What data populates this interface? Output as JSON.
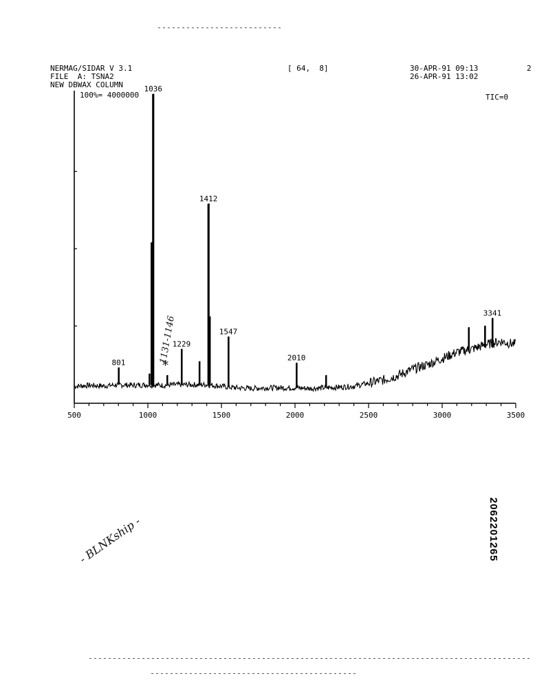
{
  "header": {
    "program": "NERMAG/SIDAR V 3.1",
    "file": "FILE  A: TSNA2",
    "column": "NEW DBWAX COLUMN",
    "scan_range": "[ 64,  8]",
    "date_acquired": "30-APR-91 09:13",
    "date_processed": "26-APR-91 13:02",
    "page_number": "2",
    "scale_label": "100%= 4000000",
    "tic": "TIC=0"
  },
  "annotations": {
    "handwritten_range": "1131-1146",
    "asterisk": "*",
    "handwritten_note": "- BLNKship -",
    "document_id": "2062201265"
  },
  "chart_data": {
    "type": "line",
    "title": "",
    "xlabel": "",
    "ylabel": "",
    "xlim": [
      500,
      3500
    ],
    "ylim": [
      0,
      100
    ],
    "x_ticks": [
      500,
      1000,
      1500,
      2000,
      2500,
      3000,
      3500
    ],
    "y_ticks": [
      25,
      50,
      75
    ],
    "baseline": [
      [
        500,
        5.5
      ],
      [
        600,
        5.8
      ],
      [
        700,
        5.6
      ],
      [
        800,
        6.0
      ],
      [
        900,
        5.8
      ],
      [
        1000,
        6.0
      ],
      [
        1100,
        5.8
      ],
      [
        1200,
        6.0
      ],
      [
        1300,
        6.0
      ],
      [
        1400,
        6.0
      ],
      [
        1500,
        5.5
      ],
      [
        1600,
        5.0
      ],
      [
        1700,
        4.8
      ],
      [
        1800,
        5.0
      ],
      [
        1900,
        5.0
      ],
      [
        2000,
        5.0
      ],
      [
        2100,
        4.8
      ],
      [
        2200,
        5.0
      ],
      [
        2300,
        5.2
      ],
      [
        2400,
        5.5
      ],
      [
        2500,
        6.5
      ],
      [
        2600,
        7.5
      ],
      [
        2700,
        9.0
      ],
      [
        2800,
        11.0
      ],
      [
        2900,
        12.5
      ],
      [
        3000,
        14.5
      ],
      [
        3100,
        16.5
      ],
      [
        3200,
        17.5
      ],
      [
        3300,
        19.0
      ],
      [
        3400,
        20.0
      ],
      [
        3500,
        19.0
      ]
    ],
    "peaks": [
      {
        "x": 801,
        "y": 11.5,
        "label": "801"
      },
      {
        "x": 1010,
        "y": 9.5,
        "label": ""
      },
      {
        "x": 1026,
        "y": 52,
        "label": ""
      },
      {
        "x": 1036,
        "y": 100,
        "label": "1036"
      },
      {
        "x": 1131,
        "y": 9.0,
        "label": ""
      },
      {
        "x": 1229,
        "y": 17.5,
        "label": "1229"
      },
      {
        "x": 1350,
        "y": 13.5,
        "label": ""
      },
      {
        "x": 1412,
        "y": 64.5,
        "label": "1412"
      },
      {
        "x": 1420,
        "y": 28,
        "label": ""
      },
      {
        "x": 1547,
        "y": 21.5,
        "label": "1547"
      },
      {
        "x": 2010,
        "y": 13.0,
        "label": "2010"
      },
      {
        "x": 2210,
        "y": 9.0,
        "label": ""
      },
      {
        "x": 3180,
        "y": 24.5,
        "label": ""
      },
      {
        "x": 3290,
        "y": 25.0,
        "label": ""
      },
      {
        "x": 3341,
        "y": 27.5,
        "label": "3341"
      }
    ]
  }
}
